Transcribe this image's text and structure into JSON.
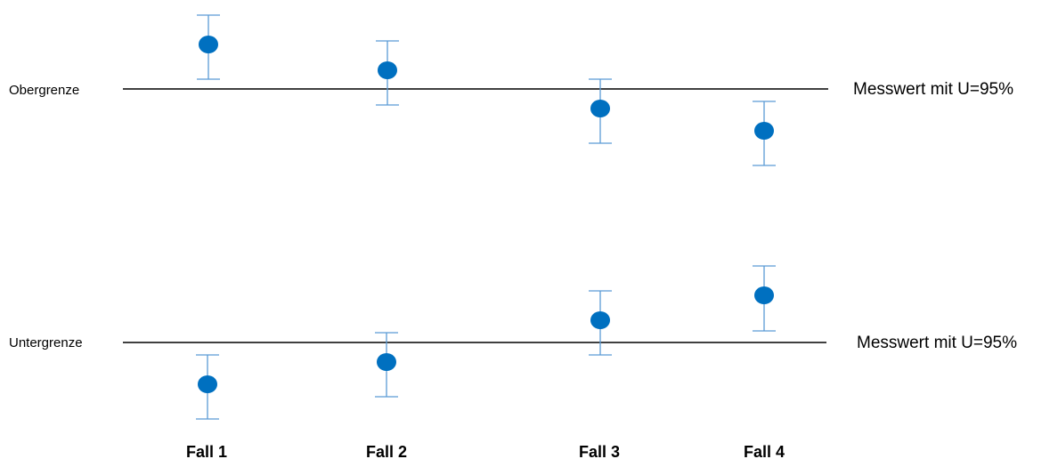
{
  "upper": {
    "limit_label": "Obergrenze",
    "legend_label": "Messwert mit U=95%"
  },
  "lower": {
    "limit_label": "Untergrenze",
    "legend_label": "Messwert mit U=95%"
  },
  "cases": [
    "Fall 1",
    "Fall 2",
    "Fall 3",
    "Fall 4"
  ],
  "colors": {
    "point": "#0070c0",
    "errorbar": "#5b9bd5",
    "limit_line": "#000000"
  }
}
